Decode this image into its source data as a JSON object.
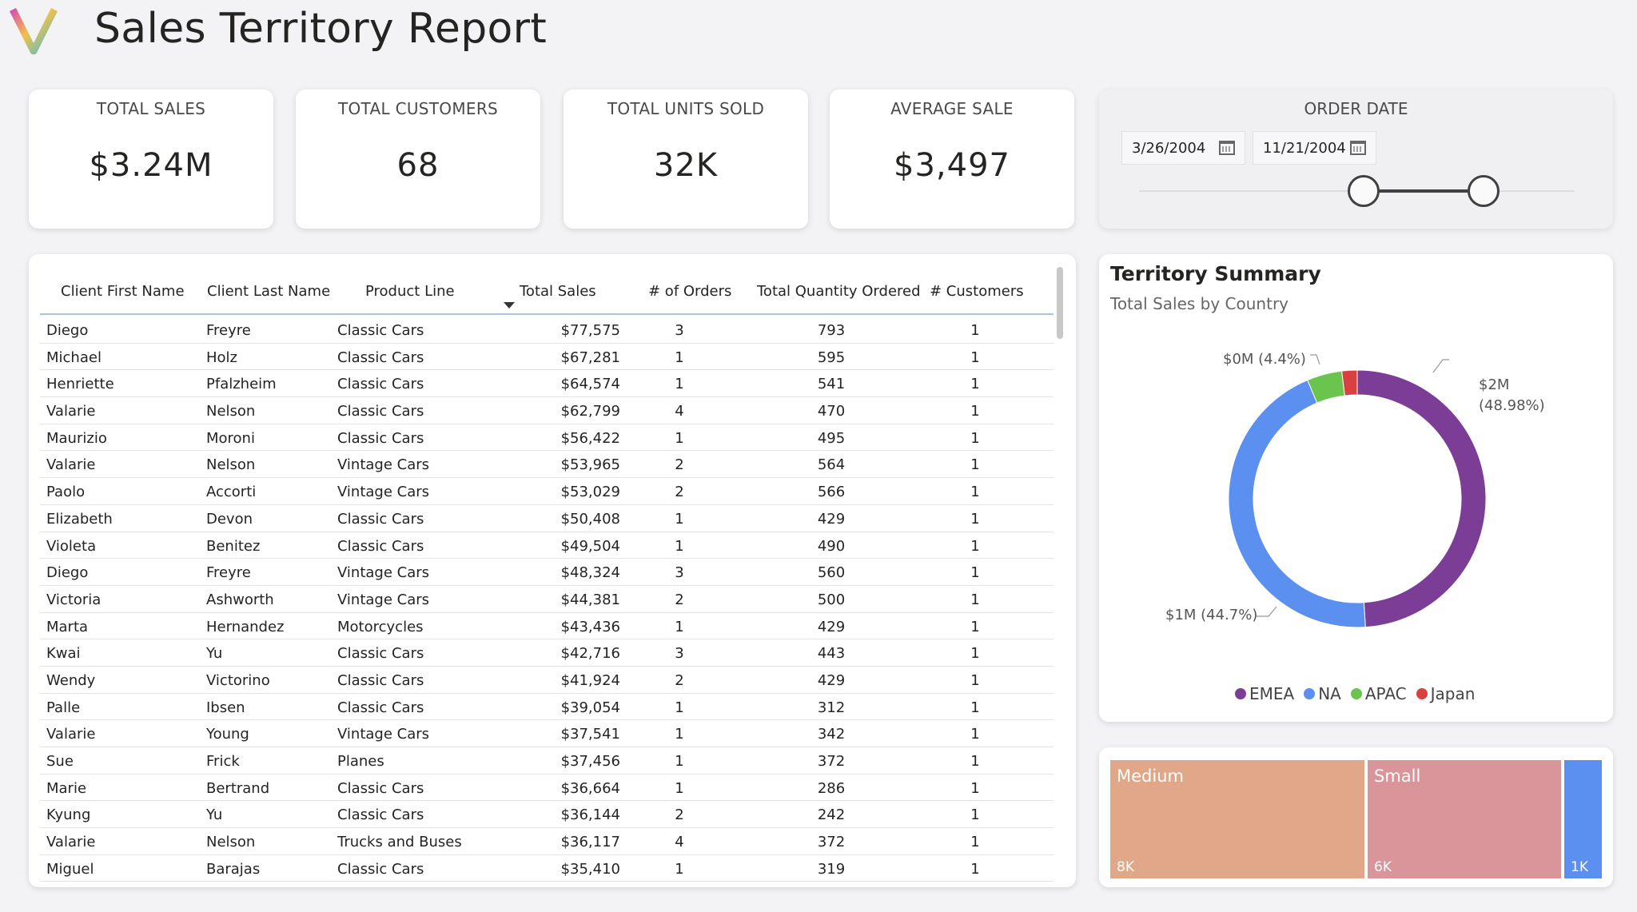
{
  "title": "Sales Territory Report",
  "kpis": [
    {
      "label": "TOTAL SALES",
      "value": "$3.24M"
    },
    {
      "label": "TOTAL CUSTOMERS",
      "value": "68"
    },
    {
      "label": "TOTAL UNITS SOLD",
      "value": "32K"
    },
    {
      "label": "AVERAGE SALE",
      "value": "$3,497"
    }
  ],
  "order_date": {
    "label": "ORDER DATE",
    "start": "3/26/2004",
    "end": "11/21/2004",
    "range_start_fraction": 0.47,
    "range_end_fraction": 0.74
  },
  "table": {
    "columns": [
      "Client First Name",
      "Client Last Name",
      "Product Line",
      "Total Sales",
      "# of Orders",
      "Total Quantity Ordered",
      "# Customers"
    ],
    "sorted_column": "Product Line",
    "rows": [
      [
        "Diego",
        "Freyre",
        "Classic Cars",
        "$77,575",
        "3",
        "793",
        "1"
      ],
      [
        "Michael",
        "Holz",
        "Classic Cars",
        "$67,281",
        "1",
        "595",
        "1"
      ],
      [
        "Henriette",
        "Pfalzheim",
        "Classic Cars",
        "$64,574",
        "1",
        "541",
        "1"
      ],
      [
        "Valarie",
        "Nelson",
        "Classic Cars",
        "$62,799",
        "4",
        "470",
        "1"
      ],
      [
        "Maurizio",
        "Moroni",
        "Classic Cars",
        "$56,422",
        "1",
        "495",
        "1"
      ],
      [
        "Valarie",
        "Nelson",
        "Vintage Cars",
        "$53,965",
        "2",
        "564",
        "1"
      ],
      [
        "Paolo",
        "Accorti",
        "Vintage Cars",
        "$53,029",
        "2",
        "566",
        "1"
      ],
      [
        "Elizabeth",
        "Devon",
        "Classic Cars",
        "$50,408",
        "1",
        "429",
        "1"
      ],
      [
        "Violeta",
        "Benitez",
        "Classic Cars",
        "$49,504",
        "1",
        "490",
        "1"
      ],
      [
        "Diego",
        "Freyre",
        "Vintage Cars",
        "$48,324",
        "3",
        "560",
        "1"
      ],
      [
        "Victoria",
        "Ashworth",
        "Vintage Cars",
        "$44,381",
        "2",
        "500",
        "1"
      ],
      [
        "Marta",
        "Hernandez",
        "Motorcycles",
        "$43,436",
        "1",
        "429",
        "1"
      ],
      [
        "Kwai",
        "Yu",
        "Classic Cars",
        "$42,716",
        "3",
        "443",
        "1"
      ],
      [
        "Wendy",
        "Victorino",
        "Classic Cars",
        "$41,924",
        "2",
        "429",
        "1"
      ],
      [
        "Palle",
        "Ibsen",
        "Classic Cars",
        "$39,054",
        "1",
        "312",
        "1"
      ],
      [
        "Valarie",
        "Young",
        "Vintage Cars",
        "$37,541",
        "1",
        "342",
        "1"
      ],
      [
        "Sue",
        "Frick",
        "Planes",
        "$37,456",
        "1",
        "372",
        "1"
      ],
      [
        "Marie",
        "Bertrand",
        "Classic Cars",
        "$36,664",
        "1",
        "286",
        "1"
      ],
      [
        "Kyung",
        "Yu",
        "Classic Cars",
        "$36,144",
        "2",
        "242",
        "1"
      ],
      [
        "Valarie",
        "Nelson",
        "Trucks and Buses",
        "$36,117",
        "4",
        "372",
        "1"
      ],
      [
        "Miguel",
        "Barajas",
        "Classic Cars",
        "$35,410",
        "1",
        "319",
        "1"
      ]
    ]
  },
  "territory": {
    "title": "Territory Summary",
    "subtitle": "Total Sales by Country",
    "labels": {
      "emea_a": "$2M",
      "emea_b": "(48.98%)",
      "na": "$1M (44.7%)",
      "apac": "$0M (4.4%)"
    },
    "legend": [
      "EMEA",
      "NA",
      "APAC",
      "Japan"
    ]
  },
  "colors": {
    "EMEA": "#7b3d96",
    "NA": "#5b8ff0",
    "APAC": "#6ac44e",
    "Japan": "#d94040",
    "Medium": "#e0a888",
    "Small": "#d99599",
    "Large": "#5b8ff0"
  },
  "chart_data": {
    "type": "pie",
    "title": "Territory Summary",
    "subtitle": "Total Sales by Country",
    "series": [
      {
        "name": "EMEA",
        "value": 48.98
      },
      {
        "name": "NA",
        "value": 44.7
      },
      {
        "name": "APAC",
        "value": 4.4
      },
      {
        "name": "Japan",
        "value": 1.92
      }
    ],
    "legend_position": "bottom"
  },
  "treemap": [
    {
      "name": "Medium",
      "value": "8K",
      "num": 8
    },
    {
      "name": "Small",
      "value": "6K",
      "num": 6
    },
    {
      "name": "",
      "value": "1K",
      "num": 1
    }
  ]
}
